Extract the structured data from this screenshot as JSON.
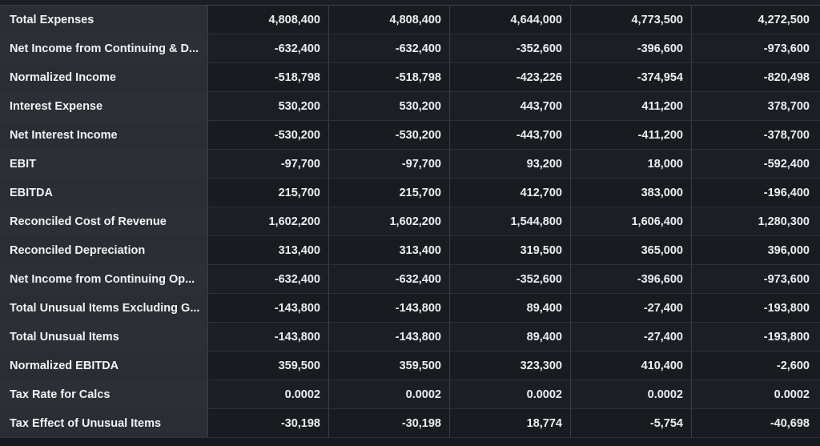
{
  "rows": [
    {
      "label": "Total Expenses",
      "values": [
        "4,808,400",
        "4,808,400",
        "4,644,000",
        "4,773,500",
        "4,272,500"
      ]
    },
    {
      "label": "Net Income from Continuing & D...",
      "values": [
        "-632,400",
        "-632,400",
        "-352,600",
        "-396,600",
        "-973,600"
      ]
    },
    {
      "label": "Normalized Income",
      "values": [
        "-518,798",
        "-518,798",
        "-423,226",
        "-374,954",
        "-820,498"
      ]
    },
    {
      "label": "Interest Expense",
      "values": [
        "530,200",
        "530,200",
        "443,700",
        "411,200",
        "378,700"
      ]
    },
    {
      "label": "Net Interest Income",
      "values": [
        "-530,200",
        "-530,200",
        "-443,700",
        "-411,200",
        "-378,700"
      ]
    },
    {
      "label": "EBIT",
      "values": [
        "-97,700",
        "-97,700",
        "93,200",
        "18,000",
        "-592,400"
      ]
    },
    {
      "label": "EBITDA",
      "values": [
        "215,700",
        "215,700",
        "412,700",
        "383,000",
        "-196,400"
      ]
    },
    {
      "label": "Reconciled Cost of Revenue",
      "values": [
        "1,602,200",
        "1,602,200",
        "1,544,800",
        "1,606,400",
        "1,280,300"
      ]
    },
    {
      "label": "Reconciled Depreciation",
      "values": [
        "313,400",
        "313,400",
        "319,500",
        "365,000",
        "396,000"
      ]
    },
    {
      "label": "Net Income from Continuing Op...",
      "values": [
        "-632,400",
        "-632,400",
        "-352,600",
        "-396,600",
        "-973,600"
      ]
    },
    {
      "label": "Total Unusual Items Excluding G...",
      "values": [
        "-143,800",
        "-143,800",
        "89,400",
        "-27,400",
        "-193,800"
      ]
    },
    {
      "label": "Total Unusual Items",
      "values": [
        "-143,800",
        "-143,800",
        "89,400",
        "-27,400",
        "-193,800"
      ]
    },
    {
      "label": "Normalized EBITDA",
      "values": [
        "359,500",
        "359,500",
        "323,300",
        "410,400",
        "-2,600"
      ]
    },
    {
      "label": "Tax Rate for Calcs",
      "values": [
        "0.0002",
        "0.0002",
        "0.0002",
        "0.0002",
        "0.0002"
      ]
    },
    {
      "label": "Tax Effect of Unusual Items",
      "values": [
        "-30,198",
        "-30,198",
        "18,774",
        "-5,754",
        "-40,698"
      ]
    }
  ]
}
